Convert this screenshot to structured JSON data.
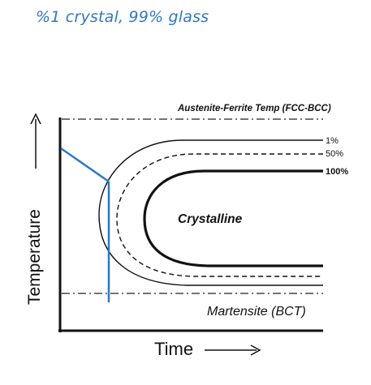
{
  "annotation": "%1 crystal, 99% glass",
  "diagram": {
    "top_line_label": "Austenite-Ferrite Temp (FCC-BCC)",
    "bottom_line_label": "Martensite (BCT)",
    "region_label": "Crystalline",
    "curves": [
      {
        "label": "1%",
        "style": "solid-thin"
      },
      {
        "label": "50%",
        "style": "dashed"
      },
      {
        "label": "100%",
        "style": "solid-bold"
      }
    ],
    "y_axis_label": "Temperature",
    "x_axis_label": "Time",
    "overlay_color": "#2f78c4"
  }
}
